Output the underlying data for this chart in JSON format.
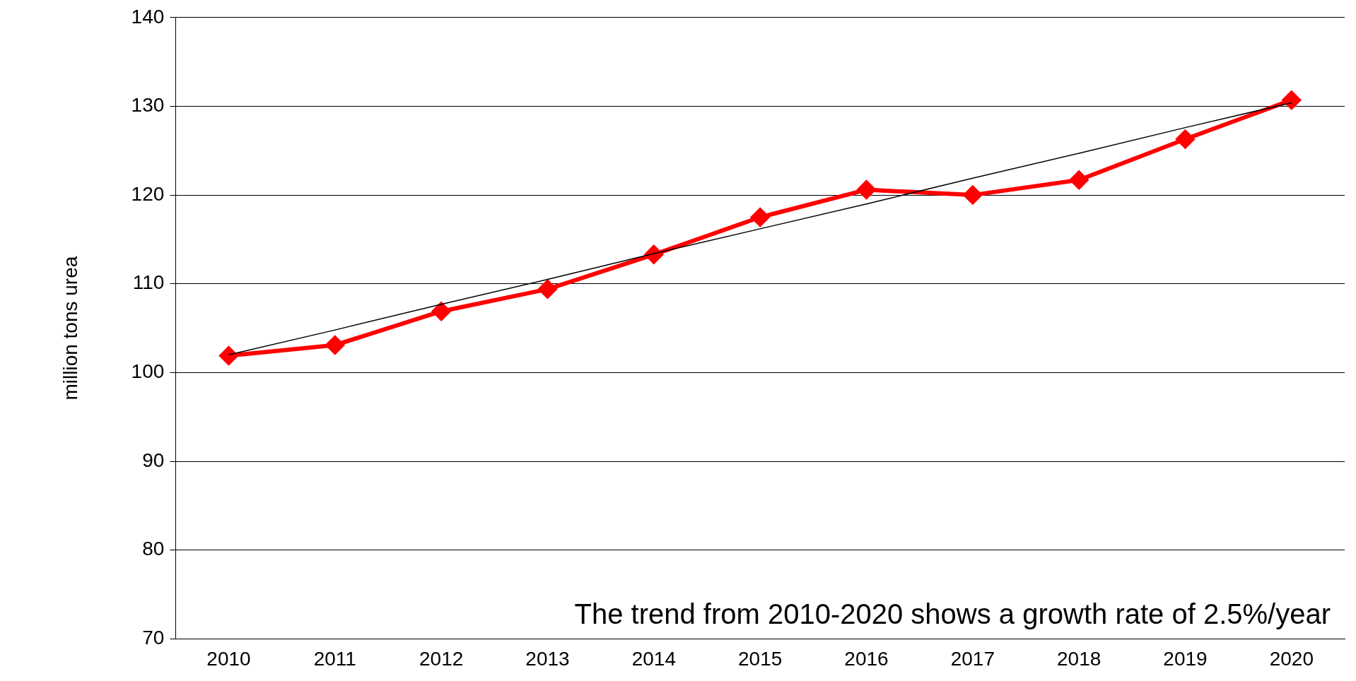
{
  "chart_data": {
    "type": "line",
    "ylabel": "million tons urea",
    "categories": [
      "2010",
      "2011",
      "2012",
      "2013",
      "2014",
      "2015",
      "2016",
      "2017",
      "2018",
      "2019",
      "2020"
    ],
    "series": [
      {
        "color": "#ff0000",
        "marker": "diamond",
        "values": [
          101.9,
          103.1,
          106.9,
          109.4,
          113.3,
          117.5,
          120.6,
          120.0,
          121.7,
          126.3,
          130.7
        ]
      },
      {
        "color": "#000000",
        "marker": "none",
        "values": [
          102.0,
          104.8,
          107.7,
          110.5,
          113.4,
          116.2,
          119.0,
          121.9,
          124.7,
          127.6,
          130.4
        ]
      }
    ],
    "ylim": [
      70,
      140
    ],
    "yticks": [
      70,
      80,
      90,
      100,
      110,
      120,
      130,
      140
    ],
    "grid": "y",
    "legend": false,
    "annotations": [
      "The trend from 2010-2020 shows a growth rate of 2.5%/year"
    ]
  }
}
